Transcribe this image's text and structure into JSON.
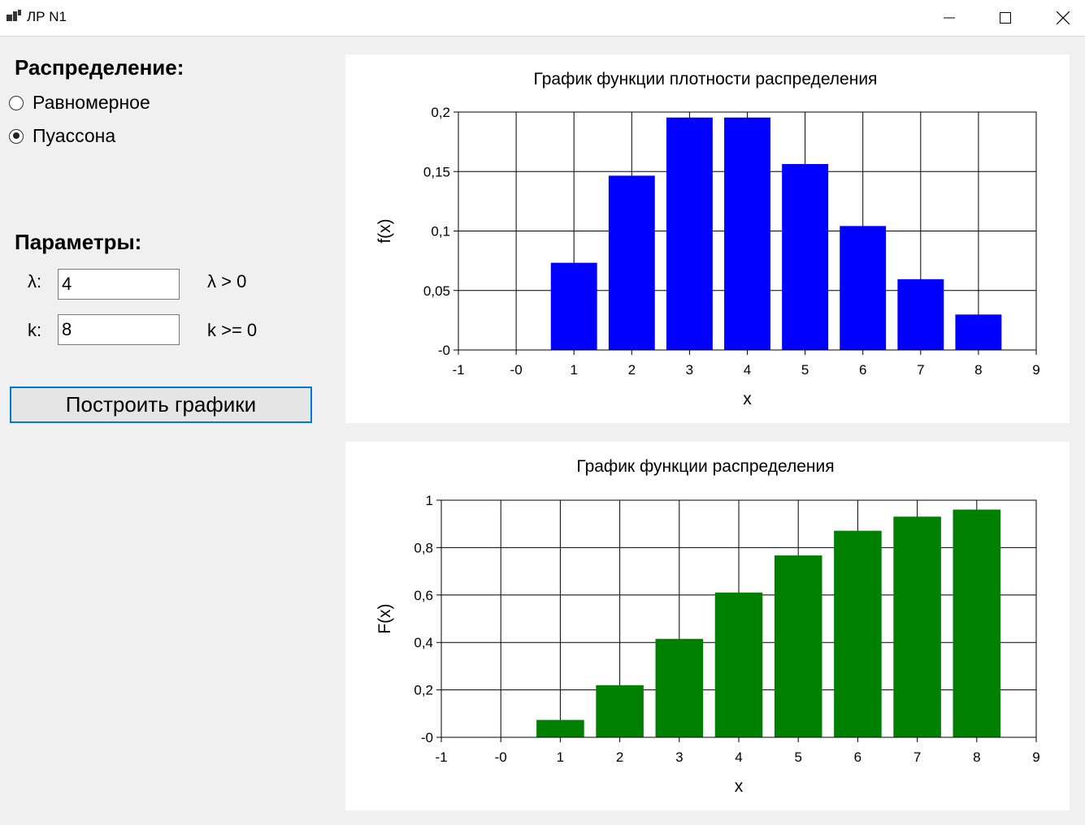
{
  "window": {
    "title": "ЛР N1"
  },
  "distribution": {
    "heading": "Распределение:",
    "options": [
      {
        "label": "Равномерное",
        "selected": false
      },
      {
        "label": "Пуассона",
        "selected": true
      }
    ]
  },
  "params": {
    "heading": "Параметры:",
    "lambda": {
      "label": "λ:",
      "value": "4",
      "hint": "λ > 0"
    },
    "k": {
      "label": "k:",
      "value": "8",
      "hint": "k >= 0"
    }
  },
  "build_button": "Построить графики",
  "chart_data": [
    {
      "type": "bar",
      "title": "График функции плотности распределения",
      "xlabel": "x",
      "ylabel": "f(x)",
      "color": "#0000ff",
      "x": [
        1,
        2,
        3,
        4,
        5,
        6,
        7,
        8
      ],
      "values": [
        0.0733,
        0.1465,
        0.1954,
        0.1954,
        0.1563,
        0.1042,
        0.0595,
        0.0298
      ],
      "xlim": [
        -1,
        9
      ],
      "ylim": [
        0,
        0.2
      ],
      "xticks": [
        "-1",
        "-0",
        "1",
        "2",
        "3",
        "4",
        "5",
        "6",
        "7",
        "8",
        "9"
      ],
      "yticks": [
        "-0",
        "0,05",
        "0,1",
        "0,15",
        "0,2"
      ],
      "grid": true
    },
    {
      "type": "bar",
      "title": "График функции распределения",
      "xlabel": "x",
      "ylabel": "F(x)",
      "color": "#008000",
      "x": [
        1,
        2,
        3,
        4,
        5,
        6,
        7,
        8
      ],
      "values": [
        0.0733,
        0.2198,
        0.4152,
        0.6106,
        0.7669,
        0.8711,
        0.9306,
        0.9604
      ],
      "xlim": [
        -1,
        9
      ],
      "ylim": [
        0,
        1
      ],
      "xticks": [
        "-1",
        "-0",
        "1",
        "2",
        "3",
        "4",
        "5",
        "6",
        "7",
        "8",
        "9"
      ],
      "yticks": [
        "-0",
        "0,2",
        "0,4",
        "0,6",
        "0,8",
        "1"
      ],
      "grid": true
    }
  ]
}
